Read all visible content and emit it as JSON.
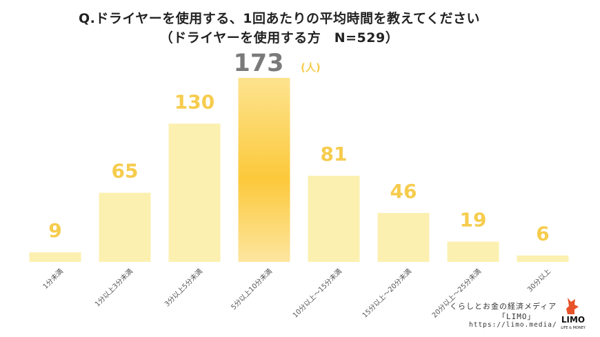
{
  "header": {
    "title_line1": "Q.ドライヤーを使用する、1回あたりの平均時間を教えてください",
    "title_line2": "（ドライヤーを使用する方　N=529）"
  },
  "chart_data": {
    "type": "bar",
    "title": "Q.ドライヤーを使用する、1回あたりの平均時間を教えてください（ドライヤーを使用する方　N=529）",
    "categories": [
      "1分未満",
      "1分以上3分未満",
      "3分以上5分未満",
      "5分以上10分未満",
      "10分以上～15分未満",
      "15分以上～20分未満",
      "20分以上～25分未満",
      "30分以上"
    ],
    "values": [
      9,
      65,
      130,
      173,
      81,
      46,
      19,
      6
    ],
    "unit_label": "(人)",
    "highlight_index": 3,
    "xlabel": "",
    "ylabel": "",
    "ylim": [
      0,
      173
    ],
    "colors": {
      "bar": "#fbf0b0",
      "highlight_top": "#fde08a",
      "highlight_mid": "#fcc93b",
      "label": "#f6cc4d",
      "highlight_label": "#7a7a7a"
    }
  },
  "credit": {
    "line1": "くらしとお金の経済メディア",
    "line2": "「LIMO」",
    "url": "https://limo.media/",
    "logo_text": "LIMO",
    "logo_sub": "LIFE & MONEY"
  }
}
